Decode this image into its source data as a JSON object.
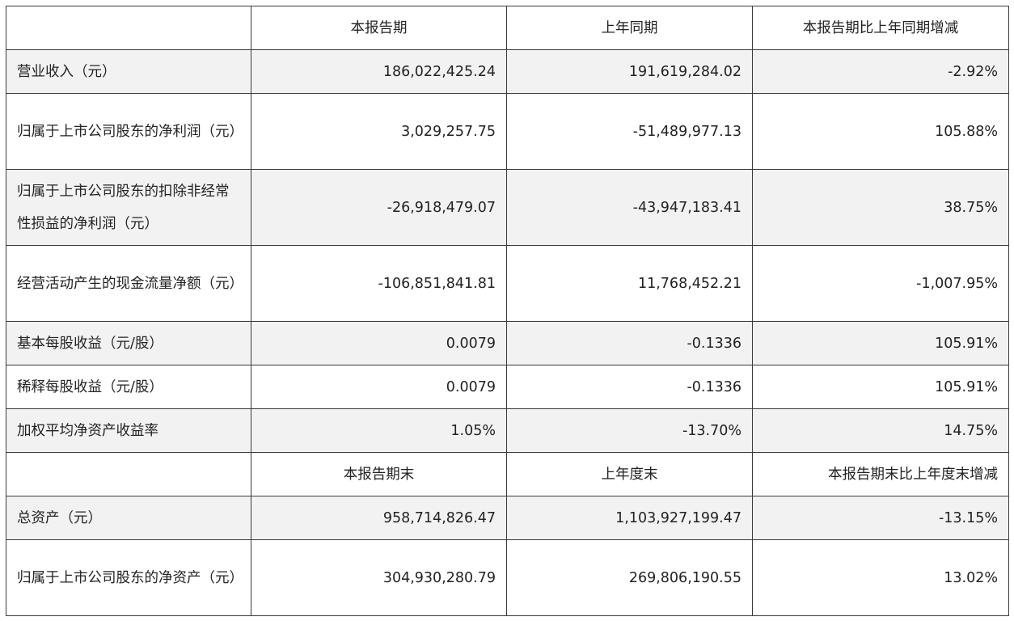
{
  "headers": {
    "blank": "",
    "current": "本报告期",
    "prior": "上年同期",
    "change": "本报告期比上年同期增减"
  },
  "rows": [
    {
      "label": "营业收入（元）",
      "current": "186,022,425.24",
      "prior": "191,619,284.02",
      "change": "-2.92%"
    },
    {
      "label": "归属于上市公司股东的净利润（元）",
      "current": "3,029,257.75",
      "prior": "-51,489,977.13",
      "change": "105.88%"
    },
    {
      "label": "归属于上市公司股东的扣除非经常性损益的净利润（元）",
      "current": "-26,918,479.07",
      "prior": "-43,947,183.41",
      "change": "38.75%"
    },
    {
      "label": "经营活动产生的现金流量净额（元）",
      "current": "-106,851,841.81",
      "prior": "11,768,452.21",
      "change": "-1,007.95%"
    },
    {
      "label": "基本每股收益（元/股）",
      "current": "0.0079",
      "prior": "-0.1336",
      "change": "105.91%"
    },
    {
      "label": "稀释每股收益（元/股）",
      "current": "0.0079",
      "prior": "-0.1336",
      "change": "105.91%"
    },
    {
      "label": "加权平均净资产收益率",
      "current": "1.05%",
      "prior": "-13.70%",
      "change": "14.75%"
    }
  ],
  "headers2": {
    "blank": "",
    "current": "本报告期末",
    "prior": "上年度末",
    "change": "本报告期末比上年度末增减"
  },
  "rows2": [
    {
      "label": "总资产（元）",
      "current": "958,714,826.47",
      "prior": "1,103,927,199.47",
      "change": "-13.15%"
    },
    {
      "label": "归属于上市公司股东的净资产（元）",
      "current": "304,930,280.79",
      "prior": "269,806,190.55",
      "change": "13.02%"
    }
  ]
}
